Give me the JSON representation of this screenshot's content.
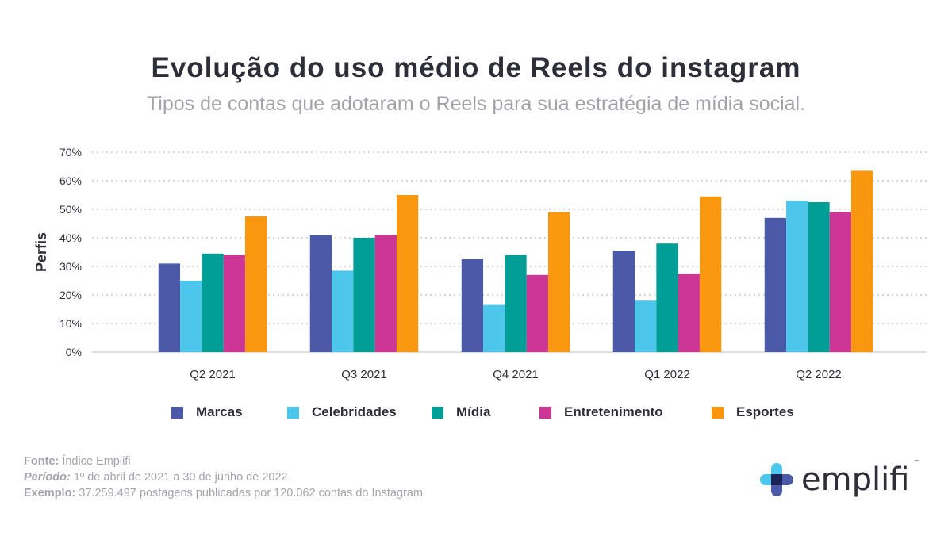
{
  "header": {
    "title": "Evolução do uso médio de Reels do instagram",
    "subtitle": "Tipos de contas que adotaram o Reels para sua estratégia de mídia social."
  },
  "chart_data": {
    "type": "bar",
    "title": "Evolução do uso médio de Reels do instagram",
    "subtitle": "Tipos de contas que adotaram o Reels para sua estratégia de mídia social.",
    "xlabel": "",
    "ylabel": "Perfis",
    "ylim": [
      0,
      70
    ],
    "yticks": [
      "0%",
      "10%",
      "20%",
      "30%",
      "40%",
      "50%",
      "60%",
      "70%"
    ],
    "grid": true,
    "legend_position": "bottom",
    "categories": [
      "Q2 2021",
      "Q3 2021",
      "Q4 2021",
      "Q1 2022",
      "Q2 2022"
    ],
    "series": [
      {
        "name": "Marcas",
        "color": "#4a5aa8",
        "values": [
          31,
          41,
          32.5,
          35.5,
          47
        ]
      },
      {
        "name": "Celebridades",
        "color": "#4cc6ea",
        "values": [
          25,
          28.5,
          16.5,
          18,
          53
        ]
      },
      {
        "name": "Mídia",
        "color": "#009e96",
        "values": [
          34.5,
          40,
          34,
          38,
          52.5
        ]
      },
      {
        "name": "Entretenimento",
        "color": "#cc3694",
        "values": [
          34,
          41,
          27,
          27.5,
          49
        ]
      },
      {
        "name": "Esportes",
        "color": "#f9970e",
        "values": [
          47.5,
          55,
          49,
          54.5,
          63.5
        ]
      }
    ]
  },
  "footer": {
    "source_label": "Fonte:",
    "source_value": " Índice Emplifi",
    "period_label": "Período:",
    "period_value": " 1º de abril de 2021 a 30 de junho de 2022",
    "sample_label": "Exemplo:",
    "sample_value": " 37.259.497 postagens publicadas por 120.062 contas do Instagram"
  },
  "logo": {
    "text": "emplifi",
    "trademark": "™",
    "colors": {
      "top": "#4cc6ea",
      "left": "#4cc6ea",
      "right": "#4a5aa8",
      "bottom": "#4a5aa8",
      "center": "#1a2456"
    }
  }
}
